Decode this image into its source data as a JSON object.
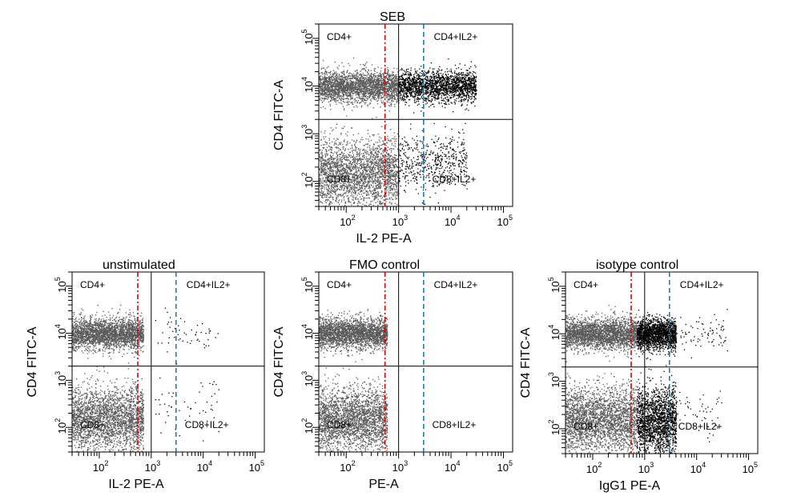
{
  "chart_data": [
    {
      "type": "scatter",
      "title": "SEB",
      "xlabel": "IL-2 PE-A",
      "ylabel": "CD4 FITC-A",
      "xscale": "log",
      "yscale": "log",
      "xlim": [
        30,
        150000
      ],
      "ylim": [
        30,
        200000
      ],
      "xticks": [
        {
          "base": "10",
          "exp": "2"
        },
        {
          "base": "10",
          "exp": "3"
        },
        {
          "base": "10",
          "exp": "4"
        },
        {
          "base": "10",
          "exp": "5"
        }
      ],
      "yticks": [
        {
          "base": "10",
          "exp": "2"
        },
        {
          "base": "10",
          "exp": "3"
        },
        {
          "base": "10",
          "exp": "4"
        },
        {
          "base": "10",
          "exp": "5"
        }
      ],
      "quadrant_gate": {
        "x": 1000,
        "y": 2000
      },
      "reference_lines": [
        {
          "x": 550,
          "color": "#dd0000"
        },
        {
          "x": 3000,
          "color": "#1f77b4"
        }
      ],
      "quadrant_labels": {
        "top_left": "CD4+",
        "top_right": "CD4+IL2+",
        "bottom_left": "CD8+",
        "bottom_right": "CD8+IL2+"
      },
      "populations": [
        {
          "color": "#5a5a5a",
          "x_range": [
            30,
            1000
          ],
          "y_center": 10000,
          "y_spread": 0.16,
          "density": 1.0
        },
        {
          "color": "#000000",
          "x_range": [
            1000,
            30000
          ],
          "y_center": 10000,
          "y_spread": 0.16,
          "density": 0.75
        },
        {
          "color": "#5a5a5a",
          "x_range": [
            30,
            1000
          ],
          "y_center": 150,
          "y_spread": 0.35,
          "density": 1.0
        },
        {
          "color": "#000000",
          "x_range": [
            1000,
            20000
          ],
          "y_center": 250,
          "y_spread": 0.3,
          "density": 0.2
        }
      ]
    },
    {
      "type": "scatter",
      "title": "unstimulated",
      "xlabel": "IL-2 PE-A",
      "ylabel": "CD4 FITC-A",
      "xscale": "log",
      "yscale": "log",
      "xlim": [
        30,
        150000
      ],
      "ylim": [
        30,
        200000
      ],
      "xticks": [
        {
          "base": "10",
          "exp": "2"
        },
        {
          "base": "10",
          "exp": "3"
        },
        {
          "base": "10",
          "exp": "4"
        },
        {
          "base": "10",
          "exp": "5"
        }
      ],
      "yticks": [
        {
          "base": "10",
          "exp": "2"
        },
        {
          "base": "10",
          "exp": "3"
        },
        {
          "base": "10",
          "exp": "4"
        },
        {
          "base": "10",
          "exp": "5"
        }
      ],
      "quadrant_gate": {
        "x": 1000,
        "y": 2000
      },
      "reference_lines": [
        {
          "x": 550,
          "color": "#dd0000"
        },
        {
          "x": 3000,
          "color": "#1f77b4"
        }
      ],
      "quadrant_labels": {
        "top_left": "CD4+",
        "top_right": "CD4+IL2+",
        "bottom_left": "CD8+",
        "bottom_right": "CD8+IL2+"
      },
      "populations": [
        {
          "color": "#5a5a5a",
          "x_range": [
            30,
            700
          ],
          "y_center": 10000,
          "y_spread": 0.16,
          "density": 1.0
        },
        {
          "color": "#000000",
          "x_range": [
            1000,
            20000
          ],
          "y_center": 10000,
          "y_spread": 0.2,
          "density": 0.02
        },
        {
          "color": "#5a5a5a",
          "x_range": [
            30,
            700
          ],
          "y_center": 150,
          "y_spread": 0.35,
          "density": 1.0
        },
        {
          "color": "#000000",
          "x_range": [
            1000,
            20000
          ],
          "y_center": 300,
          "y_spread": 0.3,
          "density": 0.02
        }
      ]
    },
    {
      "type": "scatter",
      "title": "FMO control",
      "xlabel": "PE-A",
      "ylabel": "CD4 FITC-A",
      "xscale": "log",
      "yscale": "log",
      "xlim": [
        30,
        150000
      ],
      "ylim": [
        30,
        200000
      ],
      "xticks": [
        {
          "base": "10",
          "exp": "2"
        },
        {
          "base": "10",
          "exp": "3"
        },
        {
          "base": "10",
          "exp": "4"
        },
        {
          "base": "10",
          "exp": "5"
        }
      ],
      "yticks": [
        {
          "base": "10",
          "exp": "2"
        },
        {
          "base": "10",
          "exp": "3"
        },
        {
          "base": "10",
          "exp": "4"
        },
        {
          "base": "10",
          "exp": "5"
        }
      ],
      "quadrant_gate": {
        "x": 1000,
        "y": 2000
      },
      "reference_lines": [
        {
          "x": 550,
          "color": "#dd0000"
        },
        {
          "x": 3000,
          "color": "#1f77b4"
        }
      ],
      "quadrant_labels": {
        "top_left": "CD4+",
        "top_right": "CD4+IL2+",
        "bottom_left": "CD8+",
        "bottom_right": "CD8+IL2+"
      },
      "populations": [
        {
          "color": "#5a5a5a",
          "x_range": [
            30,
            600
          ],
          "y_center": 10000,
          "y_spread": 0.16,
          "density": 1.0
        },
        {
          "color": "#5a5a5a",
          "x_range": [
            30,
            600
          ],
          "y_center": 150,
          "y_spread": 0.35,
          "density": 1.0
        }
      ]
    },
    {
      "type": "scatter",
      "title": "isotype control",
      "xlabel": "IgG1 PE-A",
      "ylabel": "CD4 FITC-A",
      "xscale": "log",
      "yscale": "log",
      "xlim": [
        30,
        150000
      ],
      "ylim": [
        30,
        200000
      ],
      "xticks": [
        {
          "base": "10",
          "exp": "2"
        },
        {
          "base": "10",
          "exp": "3"
        },
        {
          "base": "10",
          "exp": "4"
        },
        {
          "base": "10",
          "exp": "5"
        }
      ],
      "yticks": [
        {
          "base": "10",
          "exp": "2"
        },
        {
          "base": "10",
          "exp": "3"
        },
        {
          "base": "10",
          "exp": "4"
        },
        {
          "base": "10",
          "exp": "5"
        }
      ],
      "quadrant_gate": {
        "x": 1000,
        "y": 2000
      },
      "reference_lines": [
        {
          "x": 550,
          "color": "#dd0000"
        },
        {
          "x": 3000,
          "color": "#1f77b4"
        }
      ],
      "quadrant_labels": {
        "top_left": "CD4+",
        "top_right": "CD4+IL2+",
        "bottom_left": "CD8+",
        "bottom_right": "CD8+IL2+"
      },
      "populations": [
        {
          "color": "#5a5a5a",
          "x_range": [
            30,
            700
          ],
          "y_center": 10000,
          "y_spread": 0.16,
          "density": 1.0
        },
        {
          "color": "#000000",
          "x_range": [
            700,
            4000
          ],
          "y_center": 10000,
          "y_spread": 0.16,
          "density": 0.7
        },
        {
          "color": "#000000",
          "x_range": [
            4000,
            40000
          ],
          "y_center": 10000,
          "y_spread": 0.18,
          "density": 0.03
        },
        {
          "color": "#5a5a5a",
          "x_range": [
            30,
            700
          ],
          "y_center": 150,
          "y_spread": 0.35,
          "density": 1.0
        },
        {
          "color": "#000000",
          "x_range": [
            700,
            4000
          ],
          "y_center": 150,
          "y_spread": 0.35,
          "density": 0.7
        },
        {
          "color": "#000000",
          "x_range": [
            4000,
            30000
          ],
          "y_center": 200,
          "y_spread": 0.3,
          "density": 0.02
        }
      ]
    }
  ]
}
